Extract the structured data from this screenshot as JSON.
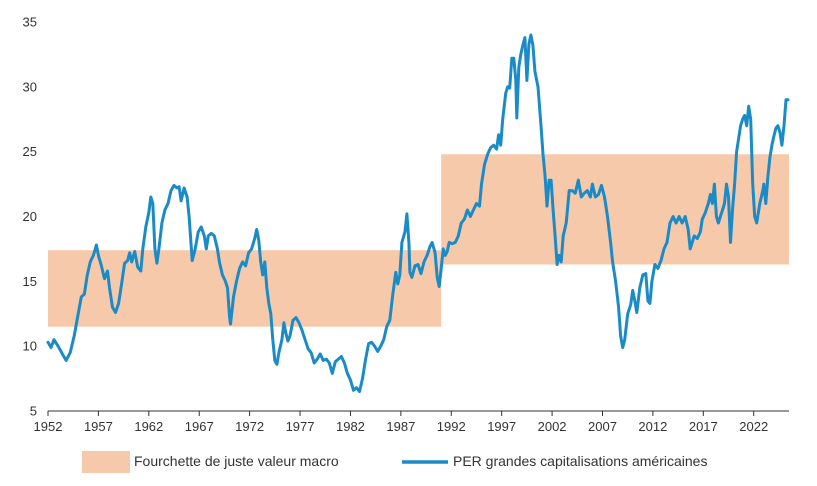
{
  "chart_data": {
    "type": "line",
    "title": "",
    "xlabel": "",
    "ylabel": "",
    "xlim": [
      1952,
      2025.5
    ],
    "ylim": [
      5,
      35
    ],
    "x_ticks": [
      1952,
      1957,
      1962,
      1967,
      1972,
      1977,
      1982,
      1987,
      1992,
      1997,
      2002,
      2007,
      2012,
      2017,
      2022
    ],
    "y_ticks": [
      5,
      10,
      15,
      20,
      25,
      30,
      35
    ],
    "grid": false,
    "legend_position": "bottom",
    "bands": [
      {
        "name": "Fourchette de juste valeur macro",
        "color": "#F7C9AB",
        "segments": [
          {
            "x_start": 1952,
            "x_end": 1991,
            "y_low": 11.5,
            "y_high": 17.4
          },
          {
            "x_start": 1991,
            "x_end": 2025.5,
            "y_low": 16.3,
            "y_high": 24.8
          }
        ]
      }
    ],
    "series": [
      {
        "name": "PER grandes capitalisations américaines",
        "color": "#1A8BC7",
        "points": [
          [
            1952.0,
            10.3
          ],
          [
            1952.3,
            9.9
          ],
          [
            1952.6,
            10.5
          ],
          [
            1953.0,
            10.0
          ],
          [
            1953.5,
            9.3
          ],
          [
            1953.8,
            8.9
          ],
          [
            1954.2,
            9.5
          ],
          [
            1954.6,
            10.8
          ],
          [
            1955.0,
            12.5
          ],
          [
            1955.3,
            13.8
          ],
          [
            1955.6,
            14.0
          ],
          [
            1955.9,
            15.5
          ],
          [
            1956.2,
            16.5
          ],
          [
            1956.5,
            17.0
          ],
          [
            1956.8,
            17.8
          ],
          [
            1957.0,
            17.0
          ],
          [
            1957.3,
            16.2
          ],
          [
            1957.6,
            15.2
          ],
          [
            1957.9,
            15.8
          ],
          [
            1958.1,
            14.5
          ],
          [
            1958.4,
            13.0
          ],
          [
            1958.7,
            12.6
          ],
          [
            1959.0,
            13.3
          ],
          [
            1959.3,
            14.8
          ],
          [
            1959.6,
            16.4
          ],
          [
            1959.9,
            16.6
          ],
          [
            1960.1,
            17.2
          ],
          [
            1960.3,
            16.5
          ],
          [
            1960.6,
            17.3
          ],
          [
            1960.9,
            16.1
          ],
          [
            1961.2,
            15.8
          ],
          [
            1961.4,
            17.5
          ],
          [
            1961.7,
            19.2
          ],
          [
            1962.0,
            20.3
          ],
          [
            1962.2,
            21.5
          ],
          [
            1962.4,
            21.0
          ],
          [
            1962.6,
            17.5
          ],
          [
            1962.8,
            16.4
          ],
          [
            1963.0,
            17.5
          ],
          [
            1963.3,
            19.5
          ],
          [
            1963.6,
            20.5
          ],
          [
            1963.9,
            21.0
          ],
          [
            1964.2,
            22.0
          ],
          [
            1964.5,
            22.4
          ],
          [
            1964.8,
            22.2
          ],
          [
            1965.0,
            22.3
          ],
          [
            1965.2,
            21.2
          ],
          [
            1965.5,
            22.2
          ],
          [
            1965.8,
            21.5
          ],
          [
            1966.0,
            20.0
          ],
          [
            1966.3,
            16.6
          ],
          [
            1966.6,
            17.5
          ],
          [
            1966.9,
            18.8
          ],
          [
            1967.2,
            19.2
          ],
          [
            1967.5,
            18.5
          ],
          [
            1967.7,
            17.5
          ],
          [
            1967.9,
            18.5
          ],
          [
            1968.2,
            18.7
          ],
          [
            1968.5,
            18.5
          ],
          [
            1968.8,
            17.5
          ],
          [
            1969.0,
            16.5
          ],
          [
            1969.3,
            15.5
          ],
          [
            1969.6,
            15.0
          ],
          [
            1969.8,
            14.5
          ],
          [
            1970.0,
            12.3
          ],
          [
            1970.1,
            11.7
          ],
          [
            1970.4,
            13.8
          ],
          [
            1970.7,
            15.0
          ],
          [
            1971.0,
            16.0
          ],
          [
            1971.3,
            16.5
          ],
          [
            1971.6,
            16.2
          ],
          [
            1971.9,
            17.2
          ],
          [
            1972.2,
            17.5
          ],
          [
            1972.5,
            18.3
          ],
          [
            1972.7,
            19.0
          ],
          [
            1972.9,
            18.2
          ],
          [
            1973.1,
            16.5
          ],
          [
            1973.3,
            15.5
          ],
          [
            1973.5,
            16.5
          ],
          [
            1973.7,
            14.5
          ],
          [
            1973.9,
            13.3
          ],
          [
            1974.1,
            12.5
          ],
          [
            1974.3,
            10.5
          ],
          [
            1974.5,
            8.9
          ],
          [
            1974.7,
            8.6
          ],
          [
            1974.9,
            9.5
          ],
          [
            1975.2,
            10.5
          ],
          [
            1975.4,
            11.8
          ],
          [
            1975.6,
            11.0
          ],
          [
            1975.8,
            10.4
          ],
          [
            1976.0,
            10.8
          ],
          [
            1976.3,
            12.0
          ],
          [
            1976.6,
            12.2
          ],
          [
            1976.9,
            11.8
          ],
          [
            1977.2,
            11.2
          ],
          [
            1977.5,
            10.5
          ],
          [
            1977.8,
            9.8
          ],
          [
            1978.1,
            9.5
          ],
          [
            1978.4,
            8.7
          ],
          [
            1978.7,
            9.0
          ],
          [
            1979.0,
            9.4
          ],
          [
            1979.3,
            8.9
          ],
          [
            1979.6,
            9.0
          ],
          [
            1979.9,
            8.7
          ],
          [
            1980.2,
            7.9
          ],
          [
            1980.5,
            8.8
          ],
          [
            1980.8,
            9.0
          ],
          [
            1981.1,
            9.2
          ],
          [
            1981.4,
            8.7
          ],
          [
            1981.7,
            7.9
          ],
          [
            1982.0,
            7.4
          ],
          [
            1982.3,
            6.6
          ],
          [
            1982.6,
            6.8
          ],
          [
            1982.9,
            6.5
          ],
          [
            1983.2,
            7.5
          ],
          [
            1983.5,
            9.0
          ],
          [
            1983.8,
            10.2
          ],
          [
            1984.1,
            10.3
          ],
          [
            1984.4,
            10.0
          ],
          [
            1984.7,
            9.6
          ],
          [
            1985.0,
            10.0
          ],
          [
            1985.3,
            10.5
          ],
          [
            1985.6,
            11.5
          ],
          [
            1985.9,
            12.0
          ],
          [
            1986.2,
            14.0
          ],
          [
            1986.5,
            15.7
          ],
          [
            1986.7,
            14.8
          ],
          [
            1986.9,
            15.5
          ],
          [
            1987.1,
            18.0
          ],
          [
            1987.4,
            18.8
          ],
          [
            1987.6,
            20.2
          ],
          [
            1987.8,
            18.0
          ],
          [
            1987.9,
            15.7
          ],
          [
            1988.1,
            15.3
          ],
          [
            1988.4,
            16.2
          ],
          [
            1988.7,
            16.3
          ],
          [
            1989.0,
            15.6
          ],
          [
            1989.3,
            16.5
          ],
          [
            1989.6,
            17.0
          ],
          [
            1989.9,
            17.7
          ],
          [
            1990.1,
            18.0
          ],
          [
            1990.4,
            17.2
          ],
          [
            1990.6,
            15.3
          ],
          [
            1990.8,
            14.6
          ],
          [
            1991.0,
            16.0
          ],
          [
            1991.2,
            17.5
          ],
          [
            1991.4,
            17.0
          ],
          [
            1991.6,
            17.3
          ],
          [
            1991.8,
            18.0
          ],
          [
            1992.1,
            17.9
          ],
          [
            1992.4,
            18.0
          ],
          [
            1992.7,
            18.5
          ],
          [
            1993.0,
            19.5
          ],
          [
            1993.3,
            19.8
          ],
          [
            1993.6,
            20.5
          ],
          [
            1993.9,
            20.0
          ],
          [
            1994.2,
            20.5
          ],
          [
            1994.5,
            21.0
          ],
          [
            1994.8,
            20.8
          ],
          [
            1995.0,
            22.5
          ],
          [
            1995.3,
            24.0
          ],
          [
            1995.6,
            24.8
          ],
          [
            1995.9,
            25.3
          ],
          [
            1996.2,
            25.5
          ],
          [
            1996.5,
            25.2
          ],
          [
            1996.7,
            26.3
          ],
          [
            1996.9,
            25.5
          ],
          [
            1997.1,
            27.5
          ],
          [
            1997.4,
            29.5
          ],
          [
            1997.6,
            30.0
          ],
          [
            1997.8,
            29.9
          ],
          [
            1998.0,
            32.2
          ],
          [
            1998.2,
            32.2
          ],
          [
            1998.4,
            30.5
          ],
          [
            1998.5,
            27.6
          ],
          [
            1998.7,
            31.5
          ],
          [
            1998.9,
            32.5
          ],
          [
            1999.1,
            33.2
          ],
          [
            1999.3,
            33.8
          ],
          [
            1999.5,
            30.5
          ],
          [
            1999.7,
            33.3
          ],
          [
            1999.9,
            34.0
          ],
          [
            2000.1,
            33.2
          ],
          [
            2000.3,
            31.2
          ],
          [
            2000.6,
            30.0
          ],
          [
            2000.9,
            27.0
          ],
          [
            2001.1,
            24.8
          ],
          [
            2001.3,
            23.2
          ],
          [
            2001.5,
            20.8
          ],
          [
            2001.7,
            22.8
          ],
          [
            2001.9,
            22.8
          ],
          [
            2002.1,
            20.5
          ],
          [
            2002.3,
            18.5
          ],
          [
            2002.5,
            16.3
          ],
          [
            2002.7,
            17.0
          ],
          [
            2002.9,
            16.5
          ],
          [
            2003.1,
            18.5
          ],
          [
            2003.4,
            19.5
          ],
          [
            2003.7,
            22.0
          ],
          [
            2004.0,
            22.0
          ],
          [
            2004.3,
            21.8
          ],
          [
            2004.6,
            22.8
          ],
          [
            2004.9,
            21.5
          ],
          [
            2005.2,
            21.8
          ],
          [
            2005.5,
            22.0
          ],
          [
            2005.8,
            21.5
          ],
          [
            2006.0,
            22.5
          ],
          [
            2006.3,
            21.5
          ],
          [
            2006.6,
            21.7
          ],
          [
            2006.9,
            22.4
          ],
          [
            2007.2,
            21.5
          ],
          [
            2007.5,
            20.0
          ],
          [
            2007.8,
            18.0
          ],
          [
            2008.0,
            16.5
          ],
          [
            2008.3,
            15.0
          ],
          [
            2008.6,
            13.0
          ],
          [
            2008.8,
            10.8
          ],
          [
            2009.0,
            9.9
          ],
          [
            2009.2,
            10.5
          ],
          [
            2009.5,
            12.5
          ],
          [
            2009.8,
            13.2
          ],
          [
            2010.0,
            14.3
          ],
          [
            2010.2,
            13.5
          ],
          [
            2010.4,
            12.6
          ],
          [
            2010.7,
            14.5
          ],
          [
            2011.0,
            15.5
          ],
          [
            2011.3,
            15.6
          ],
          [
            2011.5,
            13.5
          ],
          [
            2011.7,
            13.3
          ],
          [
            2011.9,
            15.0
          ],
          [
            2012.2,
            16.3
          ],
          [
            2012.5,
            16.0
          ],
          [
            2012.8,
            16.6
          ],
          [
            2013.1,
            17.5
          ],
          [
            2013.4,
            18.0
          ],
          [
            2013.7,
            19.5
          ],
          [
            2014.0,
            20.0
          ],
          [
            2014.3,
            19.5
          ],
          [
            2014.6,
            20.0
          ],
          [
            2014.9,
            19.5
          ],
          [
            2015.2,
            20.0
          ],
          [
            2015.5,
            19.0
          ],
          [
            2015.7,
            17.5
          ],
          [
            2015.9,
            18.0
          ],
          [
            2016.1,
            18.5
          ],
          [
            2016.4,
            18.3
          ],
          [
            2016.7,
            18.8
          ],
          [
            2016.9,
            19.8
          ],
          [
            2017.2,
            20.3
          ],
          [
            2017.5,
            21.0
          ],
          [
            2017.7,
            21.7
          ],
          [
            2017.9,
            21.0
          ],
          [
            2018.1,
            22.5
          ],
          [
            2018.3,
            20.0
          ],
          [
            2018.5,
            19.5
          ],
          [
            2018.7,
            20.0
          ],
          [
            2018.9,
            20.5
          ],
          [
            2019.1,
            21.0
          ],
          [
            2019.3,
            22.5
          ],
          [
            2019.5,
            21.5
          ],
          [
            2019.7,
            18.0
          ],
          [
            2019.9,
            20.5
          ],
          [
            2020.1,
            22.5
          ],
          [
            2020.3,
            25.0
          ],
          [
            2020.5,
            26.0
          ],
          [
            2020.7,
            27.0
          ],
          [
            2020.9,
            27.5
          ],
          [
            2021.1,
            27.8
          ],
          [
            2021.3,
            27.0
          ],
          [
            2021.5,
            28.5
          ],
          [
            2021.7,
            27.5
          ],
          [
            2021.9,
            22.5
          ],
          [
            2022.1,
            20.0
          ],
          [
            2022.3,
            19.5
          ],
          [
            2022.6,
            21.0
          ],
          [
            2022.9,
            22.0
          ],
          [
            2023.0,
            22.5
          ],
          [
            2023.2,
            21.0
          ],
          [
            2023.4,
            23.0
          ],
          [
            2023.6,
            24.5
          ],
          [
            2023.8,
            25.5
          ],
          [
            2024.0,
            26.2
          ],
          [
            2024.2,
            26.8
          ],
          [
            2024.4,
            27.0
          ],
          [
            2024.6,
            26.5
          ],
          [
            2024.8,
            25.5
          ],
          [
            2025.0,
            27.0
          ],
          [
            2025.2,
            29.0
          ],
          [
            2025.4,
            29.0
          ]
        ]
      }
    ]
  },
  "legend": {
    "items": [
      {
        "label": "Fourchette de juste valeur macro",
        "kind": "band",
        "color": "#F7C9AB"
      },
      {
        "label": "PER grandes capitalisations américaines",
        "kind": "line",
        "color": "#1A8BC7"
      }
    ]
  },
  "colors": {
    "axis": "#333333",
    "band": "#F7C9AB",
    "line": "#1A8BC7"
  }
}
